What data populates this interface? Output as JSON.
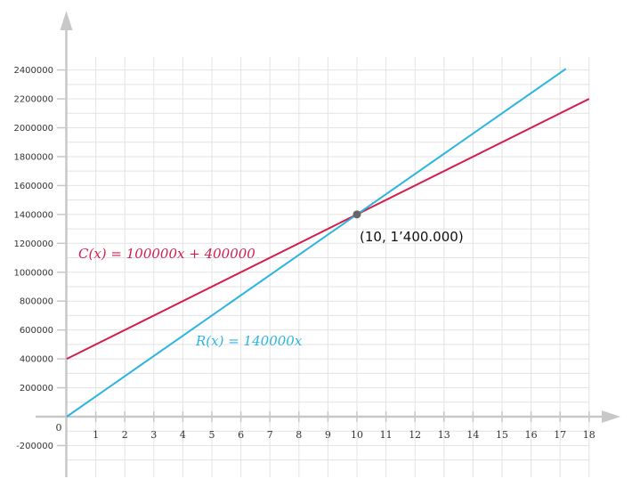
{
  "chart_data": {
    "type": "line",
    "xlim": [
      0,
      18
    ],
    "ylim": [
      -200000,
      2400000
    ],
    "x_ticks": [
      1,
      2,
      3,
      4,
      5,
      6,
      7,
      8,
      9,
      10,
      11,
      12,
      13,
      14,
      15,
      16,
      17,
      18
    ],
    "y_ticks": [
      -200000,
      200000,
      400000,
      600000,
      800000,
      1000000,
      1200000,
      1400000,
      1600000,
      1800000,
      2000000,
      2200000,
      2400000
    ],
    "origin_label": "0",
    "grid": true,
    "series": [
      {
        "name": "C(x) = 100000x + 400000",
        "color": "#d21f4e",
        "x": [
          0,
          18
        ],
        "y": [
          400000,
          2200000
        ]
      },
      {
        "name": "R(x) = 140000x",
        "color": "#2bb5e0",
        "x": [
          0,
          17.2
        ],
        "y": [
          0,
          2408000
        ]
      }
    ],
    "intersection": {
      "x": 10,
      "y": 1400000,
      "label": "(10, 1’400.000)",
      "color": "#666666"
    }
  }
}
